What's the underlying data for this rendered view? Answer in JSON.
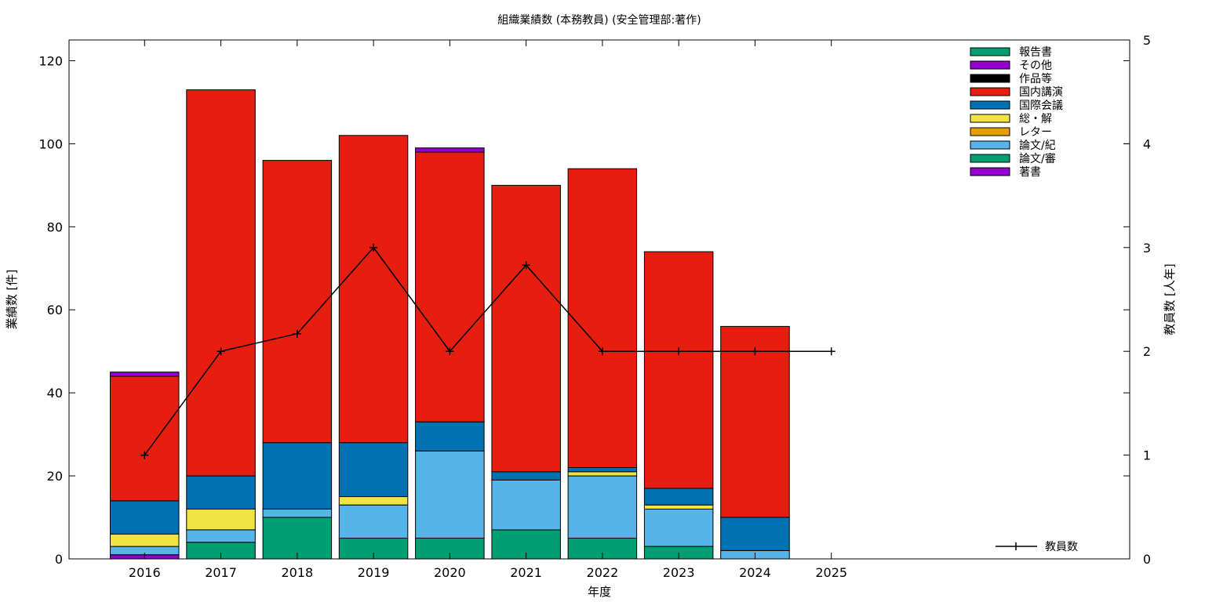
{
  "chart_data": {
    "type": "bar",
    "stacked": true,
    "title": "組織業績数 (本務教員) (安全管理部:著作)",
    "xlabel": "年度",
    "ylabel": "業績数 [件]",
    "y2label": "教員数 [人年]",
    "ylim": [
      0,
      125
    ],
    "y2lim": [
      0,
      5
    ],
    "yticks": [
      "0",
      "20",
      "40",
      "60",
      "80",
      "100",
      "120"
    ],
    "y2ticks": [
      "0",
      "1",
      "2",
      "3",
      "4",
      "5"
    ],
    "categories": [
      "2016",
      "2017",
      "2018",
      "2019",
      "2020",
      "2021",
      "2022",
      "2023",
      "2024",
      "2025"
    ],
    "grid": false,
    "legend_position": "top-right",
    "series": [
      {
        "name": "著書",
        "color": "#9400d3",
        "values": [
          1,
          0,
          0,
          0,
          0,
          0,
          0,
          0,
          0,
          0
        ]
      },
      {
        "name": "論文/審",
        "color": "#009e73",
        "values": [
          0,
          4,
          10,
          5,
          5,
          7,
          5,
          3,
          0,
          0
        ]
      },
      {
        "name": "論文/紀",
        "color": "#56b4e9",
        "values": [
          2,
          3,
          2,
          8,
          21,
          12,
          15,
          9,
          2,
          0
        ]
      },
      {
        "name": "レター",
        "color": "#e69f00",
        "values": [
          0,
          0,
          0,
          0,
          0,
          0,
          0,
          0,
          0,
          0
        ]
      },
      {
        "name": "総・解",
        "color": "#f0e442",
        "values": [
          3,
          5,
          0,
          2,
          0,
          0,
          1,
          1,
          0,
          0
        ]
      },
      {
        "name": "国際会議",
        "color": "#0072b2",
        "values": [
          8,
          8,
          16,
          13,
          7,
          2,
          1,
          4,
          8,
          0
        ]
      },
      {
        "name": "国内講演",
        "color": "#e51e10",
        "values": [
          30,
          93,
          68,
          74,
          65,
          69,
          72,
          57,
          46,
          0
        ]
      },
      {
        "name": "作品等",
        "color": "#000000",
        "values": [
          0,
          0,
          0,
          0,
          0,
          0,
          0,
          0,
          0,
          0
        ]
      },
      {
        "name": "その他",
        "color": "#9400d3",
        "values": [
          1,
          0,
          0,
          0,
          1,
          0,
          0,
          0,
          0,
          0
        ]
      },
      {
        "name": "報告書",
        "color": "#009e73",
        "values": [
          0,
          0,
          0,
          0,
          0,
          0,
          0,
          0,
          0,
          0
        ]
      }
    ],
    "legend_order": [
      "報告書",
      "その他",
      "作品等",
      "国内講演",
      "国際会議",
      "総・解",
      "レター",
      "論文/紀",
      "論文/審",
      "著書"
    ],
    "line": {
      "name": "教員数",
      "color": "#000000",
      "axis": "y2",
      "values": [
        1.0,
        2.0,
        2.17,
        3.0,
        2.0,
        2.83,
        2.0,
        2.0,
        2.0,
        2.0
      ]
    }
  }
}
